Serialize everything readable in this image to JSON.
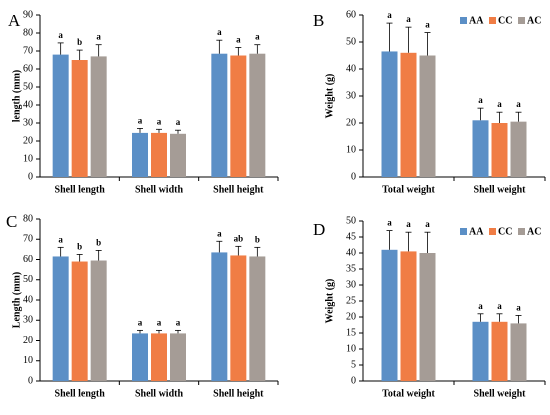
{
  "colors": {
    "AA": "#5b8fc6",
    "CC": "#f07d45",
    "AC": "#a59c96"
  },
  "chart_data": [
    {
      "type": "bar",
      "panel": "A",
      "ylabel": "length (mm)",
      "ylim": [
        0,
        90
      ],
      "ytick_step": 10,
      "categories": [
        "Shell length",
        "Shell width",
        "Shell height"
      ],
      "series": [
        {
          "name": "AA",
          "values": [
            68,
            24.5,
            68.5
          ],
          "errors": [
            6.5,
            2.5,
            7.5
          ],
          "labels": [
            "a",
            "a",
            "a"
          ]
        },
        {
          "name": "CC",
          "values": [
            65,
            24.5,
            67.5
          ],
          "errors": [
            5.5,
            2.0,
            4.5
          ],
          "labels": [
            "b",
            "a",
            "a"
          ]
        },
        {
          "name": "AC",
          "values": [
            67,
            24.0,
            68.5
          ],
          "errors": [
            6.5,
            2.0,
            5.0
          ],
          "labels": [
            "a",
            "a",
            "a"
          ]
        }
      ],
      "legend": null
    },
    {
      "type": "bar",
      "panel": "B",
      "ylabel": "Weight (g)",
      "ylim": [
        0,
        60
      ],
      "ytick_step": 10,
      "categories": [
        "Total weight",
        "Shell weight"
      ],
      "series": [
        {
          "name": "AA",
          "values": [
            46.5,
            21
          ],
          "errors": [
            10.5,
            4.5
          ],
          "labels": [
            "a",
            "a"
          ]
        },
        {
          "name": "CC",
          "values": [
            46,
            20
          ],
          "errors": [
            9.5,
            4.0
          ],
          "labels": [
            "a",
            "a"
          ]
        },
        {
          "name": "AC",
          "values": [
            45,
            20.5
          ],
          "errors": [
            8.5,
            3.5
          ],
          "labels": [
            "a",
            "a"
          ]
        }
      ],
      "legend": "top-right"
    },
    {
      "type": "bar",
      "panel": "C",
      "ylabel": "Length (mm)",
      "ylim": [
        0,
        80
      ],
      "ytick_step": 10,
      "categories": [
        "Shell length",
        "Shell width",
        "Shell height"
      ],
      "series": [
        {
          "name": "AA",
          "values": [
            61.5,
            23.5,
            63.5
          ],
          "errors": [
            4.5,
            1.5,
            5.5
          ],
          "labels": [
            "a",
            "a",
            "a"
          ]
        },
        {
          "name": "CC",
          "values": [
            59,
            23.5,
            62
          ],
          "errors": [
            3.5,
            1.5,
            4.5
          ],
          "labels": [
            "b",
            "a",
            "ab"
          ]
        },
        {
          "name": "AC",
          "values": [
            59.5,
            23.5,
            61.5
          ],
          "errors": [
            5.0,
            1.5,
            4.5
          ],
          "labels": [
            "b",
            "a",
            "b"
          ]
        }
      ],
      "legend": null
    },
    {
      "type": "bar",
      "panel": "D",
      "ylabel": "Weight (g)",
      "ylim": [
        0,
        50
      ],
      "ytick_step": 5,
      "categories": [
        "Total weight",
        "Shell weight"
      ],
      "series": [
        {
          "name": "AA",
          "values": [
            41,
            18.5
          ],
          "errors": [
            6.0,
            2.5
          ],
          "labels": [
            "a",
            "a"
          ]
        },
        {
          "name": "CC",
          "values": [
            40.5,
            18.5
          ],
          "errors": [
            6.0,
            2.5
          ],
          "labels": [
            "a",
            "a"
          ]
        },
        {
          "name": "AC",
          "values": [
            40,
            18
          ],
          "errors": [
            6.5,
            2.5
          ],
          "labels": [
            "a",
            "a"
          ]
        }
      ],
      "legend": "top-right"
    }
  ]
}
